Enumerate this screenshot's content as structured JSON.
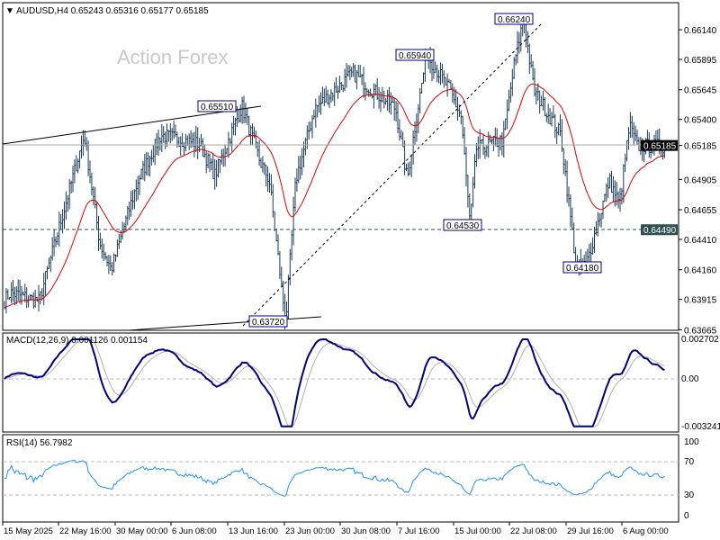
{
  "chart_data": {
    "type": "candlestick-ohlc",
    "symbol_header": "AUDUSD,H4",
    "ohlc_header": "0.65243 0.65316 0.65177 0.65185",
    "watermark": "Action Forex",
    "price_axis": {
      "ticks": [
        "0.66140",
        "0.65895",
        "0.65645",
        "0.65400",
        "0.65185",
        "0.64905",
        "0.64655",
        "0.64410",
        "0.64160",
        "0.63915",
        "0.63665"
      ],
      "ylim": [
        0.63665,
        0.6636
      ]
    },
    "current_price": "0.65185",
    "level_line": "0.64490",
    "time_axis": [
      "15 May 2025",
      "22 May 16:00",
      "30 May 00:00",
      "6 Jun 08:00",
      "13 Jun 16:00",
      "23 Jun 00:00",
      "30 Jun 08:00",
      "7 Jul 16:00",
      "15 Jul 00:00",
      "22 Jul 08:00",
      "29 Jul 16:00",
      "6 Aug 00:00"
    ],
    "swing_labels": [
      "0.65510",
      "0.63720",
      "0.65940",
      "0.66240",
      "0.64530",
      "0.64180"
    ],
    "price_path": [
      [
        "2025-05-15T04:00",
        0.639
      ],
      [
        "2025-05-16T00:00",
        0.6397
      ],
      [
        "2025-05-20T00:00",
        0.639
      ],
      [
        "2025-05-26T00:00",
        0.6527
      ],
      [
        "2025-05-28T00:00",
        0.6438
      ],
      [
        "2025-05-29T12:00",
        0.6416
      ],
      [
        "2025-06-02T00:00",
        0.649
      ],
      [
        "2025-06-05T00:00",
        0.6527
      ],
      [
        "2025-06-10T00:00",
        0.652
      ],
      [
        "2025-06-12T00:00",
        0.6494
      ],
      [
        "2025-06-16T00:00",
        0.6551
      ],
      [
        "2025-06-19T00:00",
        0.6505
      ],
      [
        "2025-06-20T12:00",
        0.649
      ],
      [
        "2025-06-23T04:00",
        0.6372
      ],
      [
        "2025-06-24T12:00",
        0.649
      ],
      [
        "2025-06-27T00:00",
        0.6549
      ],
      [
        "2025-07-02T00:00",
        0.6578
      ],
      [
        "2025-07-04T00:00",
        0.6567
      ],
      [
        "2025-07-07T12:00",
        0.6549
      ],
      [
        "2025-07-09T00:00",
        0.649
      ],
      [
        "2025-07-10T00:00",
        0.6534
      ],
      [
        "2025-07-11T12:00",
        0.6594
      ],
      [
        "2025-07-14T12:00",
        0.6564
      ],
      [
        "2025-07-16T00:00",
        0.6542
      ],
      [
        "2025-07-17T04:00",
        0.6453
      ],
      [
        "2025-07-18T00:00",
        0.6516
      ],
      [
        "2025-07-21T12:00",
        0.6523
      ],
      [
        "2025-07-23T00:00",
        0.6587
      ],
      [
        "2025-07-24T04:00",
        0.6624
      ],
      [
        "2025-07-25T12:00",
        0.6564
      ],
      [
        "2025-07-29T00:00",
        0.6527
      ],
      [
        "2025-07-31T00:00",
        0.6418
      ],
      [
        "2025-08-01T08:00",
        0.642
      ],
      [
        "2025-08-04T08:00",
        0.649
      ],
      [
        "2025-08-05T16:00",
        0.647
      ],
      [
        "2025-08-07T00:00",
        0.6535
      ],
      [
        "2025-08-08T00:00",
        0.6518
      ]
    ],
    "moving_average_color": "#e00000",
    "bar_color": "#1c3b57",
    "macd": {
      "label": "MACD(12,26,9) 0.001126 0.001154",
      "ticks": [
        "0.002702",
        "0.00",
        "-0.003241"
      ],
      "ylim": [
        -0.003241,
        0.002702
      ],
      "main_color": "#000080",
      "signal_color": "#b0b0b0"
    },
    "rsi": {
      "label": "RSI(14) 56.7982",
      "ticks": [
        "100",
        "70",
        "30",
        "0"
      ],
      "levels": [
        70,
        30
      ],
      "color": "#1e90ff"
    }
  }
}
